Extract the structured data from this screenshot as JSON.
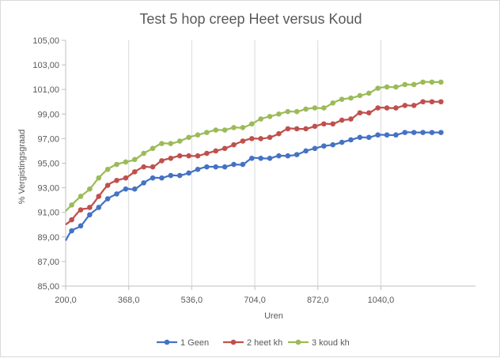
{
  "chart_data": {
    "type": "line",
    "title": "Test 5 hop creep Heet versus Koud",
    "xlabel": "Uren",
    "ylabel": "% Vergistingsgraad",
    "xlim": [
      200,
      1292
    ],
    "ylim": [
      85,
      105
    ],
    "x_ticks": [
      "200,0",
      "368,0",
      "536,0",
      "704,0",
      "872,0",
      "1040,0"
    ],
    "x_tick_values": [
      200,
      368,
      536,
      704,
      872,
      1040
    ],
    "y_ticks": [
      "85,00",
      "87,00",
      "89,00",
      "91,00",
      "93,00",
      "95,00",
      "97,00",
      "99,00",
      "101,00",
      "103,00",
      "105,00"
    ],
    "y_tick_values": [
      85,
      87,
      89,
      91,
      93,
      95,
      97,
      99,
      101,
      103,
      105
    ],
    "grid": "vertical",
    "legend": "bottom",
    "start_point": {
      "x": 200,
      "values": [
        88.7,
        90.0,
        91.1
      ]
    },
    "x": [
      216,
      240,
      264,
      288,
      312,
      336,
      360,
      384,
      408,
      432,
      456,
      480,
      504,
      528,
      552,
      576,
      600,
      624,
      648,
      672,
      696,
      720,
      744,
      768,
      792,
      816,
      840,
      864,
      888,
      912,
      936,
      960,
      984,
      1008,
      1032,
      1056,
      1080,
      1104,
      1128,
      1152,
      1176,
      1200
    ],
    "series": [
      {
        "name": "1 Geen",
        "color": "#4472c4",
        "values": [
          89.5,
          89.9,
          90.8,
          91.4,
          92.1,
          92.5,
          92.9,
          92.9,
          93.4,
          93.8,
          93.8,
          94.0,
          94.0,
          94.2,
          94.5,
          94.7,
          94.7,
          94.7,
          94.9,
          94.9,
          95.4,
          95.4,
          95.4,
          95.6,
          95.6,
          95.7,
          96.0,
          96.2,
          96.4,
          96.5,
          96.7,
          96.9,
          97.1,
          97.1,
          97.3,
          97.3,
          97.3,
          97.5,
          97.5,
          97.5,
          97.5,
          97.5
        ]
      },
      {
        "name": "2 heet kh",
        "color": "#c0504d",
        "values": [
          90.4,
          91.2,
          91.4,
          92.3,
          93.2,
          93.6,
          93.8,
          94.3,
          94.7,
          94.7,
          95.2,
          95.4,
          95.6,
          95.6,
          95.6,
          95.8,
          96.0,
          96.2,
          96.5,
          96.8,
          97.0,
          97.0,
          97.1,
          97.4,
          97.8,
          97.8,
          97.8,
          98.0,
          98.2,
          98.2,
          98.5,
          98.6,
          99.1,
          99.1,
          99.5,
          99.5,
          99.5,
          99.7,
          99.7,
          100.0,
          100.0,
          100.0
        ]
      },
      {
        "name": "3 koud kh",
        "color": "#9bbb59",
        "values": [
          91.6,
          92.3,
          92.9,
          93.8,
          94.5,
          94.9,
          95.1,
          95.3,
          95.8,
          96.2,
          96.6,
          96.6,
          96.8,
          97.1,
          97.3,
          97.5,
          97.7,
          97.7,
          97.9,
          97.9,
          98.2,
          98.6,
          98.8,
          99.0,
          99.2,
          99.2,
          99.4,
          99.5,
          99.5,
          99.9,
          100.2,
          100.3,
          100.5,
          100.7,
          101.1,
          101.2,
          101.2,
          101.4,
          101.4,
          101.6,
          101.6,
          101.6
        ]
      }
    ]
  }
}
